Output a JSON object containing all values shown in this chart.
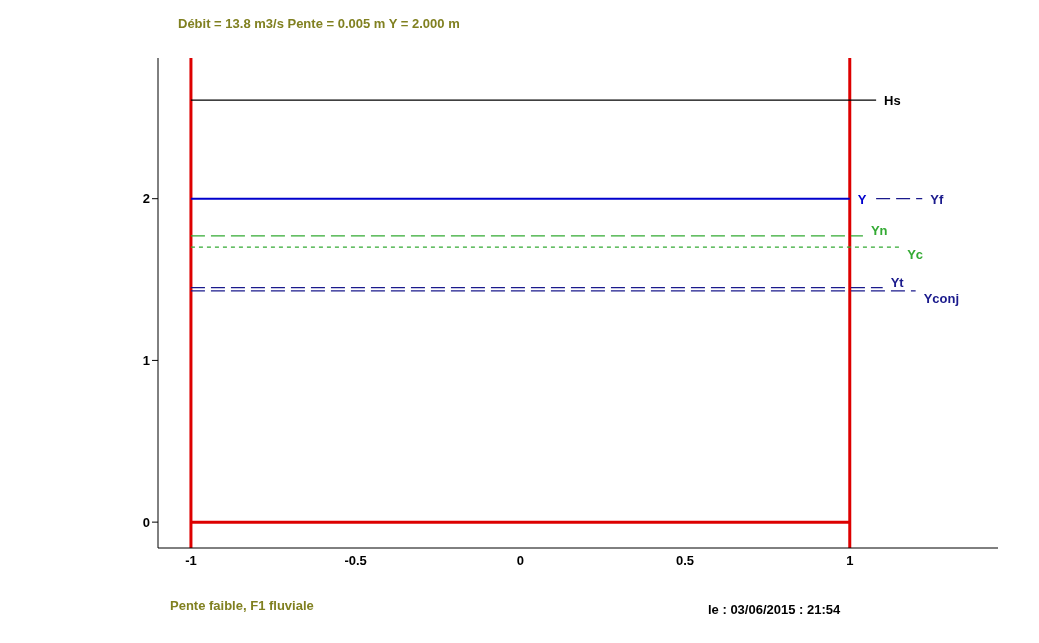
{
  "chart_data": {
    "type": "line",
    "title": "Débit = 13.8 m3/s Pente = 0.005 m Y = 2.000 m",
    "annotations": [
      "Pente faible, F1 fluviale",
      "le : 03/06/2015 : 21:54"
    ],
    "xlim": [
      -1.1,
      1.45
    ],
    "xticks": [
      -1,
      -0.5,
      0,
      0.5,
      1
    ],
    "ylim": [
      -0.16,
      2.87
    ],
    "yticks": [
      0,
      1,
      2
    ],
    "grid": false,
    "legend": false,
    "marker": "none",
    "series": [
      {
        "name": "Hs",
        "color": "#000000",
        "x": [
          -1,
          1.08
        ],
        "values": [
          2.61,
          2.61
        ],
        "line_style": "solid"
      },
      {
        "name": "Y",
        "color": "#0000cc",
        "x": [
          -1,
          1
        ],
        "values": [
          2,
          2
        ],
        "line_style": "solid"
      },
      {
        "name": "Yf",
        "color": "#1a1a8c",
        "x": [
          1.08,
          1.22
        ],
        "values": [
          2,
          2
        ],
        "line_style": "dashed"
      },
      {
        "name": "Yn",
        "color": "#33aa33",
        "x": [
          -1,
          1.04
        ],
        "values": [
          1.77,
          1.77
        ],
        "line_style": "dashed"
      },
      {
        "name": "Yc",
        "color": "#33aa33",
        "x": [
          -1,
          1.15
        ],
        "values": [
          1.7,
          1.7
        ],
        "line_style": "dotted"
      },
      {
        "name": "Yt",
        "color": "#1a1a8c",
        "x": [
          -1,
          1.1
        ],
        "values": [
          1.45,
          1.45
        ],
        "line_style": "dashed"
      },
      {
        "name": "Yconj",
        "color": "#1a1a8c",
        "x": [
          -1,
          1.2
        ],
        "values": [
          1.43,
          1.43
        ],
        "line_style": "dashed"
      },
      {
        "color": "#dd0000",
        "x": [
          -1,
          1
        ],
        "values": [
          0,
          0
        ],
        "line_style": "solid"
      }
    ],
    "ref_lines": [
      {
        "axis": "x",
        "value": -1,
        "color": "#dd0000"
      },
      {
        "axis": "x",
        "value": 1,
        "color": "#dd0000"
      }
    ]
  }
}
